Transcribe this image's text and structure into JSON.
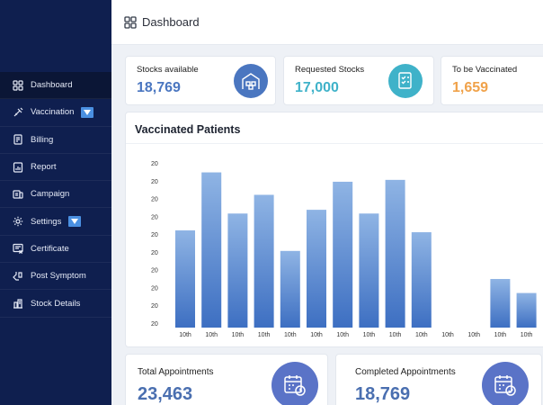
{
  "header": {
    "title": "Dashboard"
  },
  "sidebar": {
    "items": [
      {
        "label": "Dashboard",
        "icon": "grid-icon",
        "active": true,
        "dropdown": false
      },
      {
        "label": "Vaccination",
        "icon": "syringe-icon",
        "active": false,
        "dropdown": true
      },
      {
        "label": "Billing",
        "icon": "billing-icon",
        "active": false,
        "dropdown": false
      },
      {
        "label": "Report",
        "icon": "report-icon",
        "active": false,
        "dropdown": false
      },
      {
        "label": "Campaign",
        "icon": "campaign-icon",
        "active": false,
        "dropdown": false
      },
      {
        "label": "Settings",
        "icon": "gear-icon",
        "active": false,
        "dropdown": true
      },
      {
        "label": "Certificate",
        "icon": "certificate-icon",
        "active": false,
        "dropdown": false
      },
      {
        "label": "Post Symptom",
        "icon": "symptom-icon",
        "active": false,
        "dropdown": false
      },
      {
        "label": "Stock Details",
        "icon": "stock-icon",
        "active": false,
        "dropdown": false
      }
    ]
  },
  "stats": [
    {
      "label": "Stocks available",
      "value": "18,769",
      "color": "#4a76c0",
      "icon": "warehouse-icon",
      "icon_bg": "#4a76c0"
    },
    {
      "label": "Requested Stocks",
      "value": "17,000",
      "color": "#3fb2c9",
      "icon": "checklist-icon",
      "icon_bg": "#3fb2c9"
    },
    {
      "label": "To be Vaccinated",
      "value": "1,659",
      "color": "#f0a24a",
      "icon": "",
      "icon_bg": ""
    }
  ],
  "chart": {
    "title": "Vaccinated Patients"
  },
  "chart_data": {
    "type": "bar",
    "title": "Vaccinated Patients",
    "xlabel": "",
    "ylabel": "",
    "y_tick_labels": [
      "20",
      "20",
      "20",
      "20",
      "20",
      "20",
      "20",
      "20",
      "20",
      "20"
    ],
    "categories": [
      "10th",
      "10th",
      "10th",
      "10th",
      "10th",
      "10th",
      "10th",
      "10th",
      "10th",
      "10th",
      "10th",
      "10th",
      "10th",
      "10th"
    ],
    "values": [
      104,
      166,
      122,
      142,
      82,
      126,
      156,
      122,
      158,
      102,
      0,
      0,
      52,
      37
    ],
    "ylim": [
      0,
      180
    ],
    "grid": false,
    "colors": [
      "#3d6fc2",
      "#8fb4e4"
    ]
  },
  "bottom": [
    {
      "label": "Total Appointments",
      "value": "23,463",
      "icon": "calendar-clock-icon"
    },
    {
      "label": "Completed Appointments",
      "value": "18,769",
      "icon": "calendar-check-icon"
    }
  ]
}
